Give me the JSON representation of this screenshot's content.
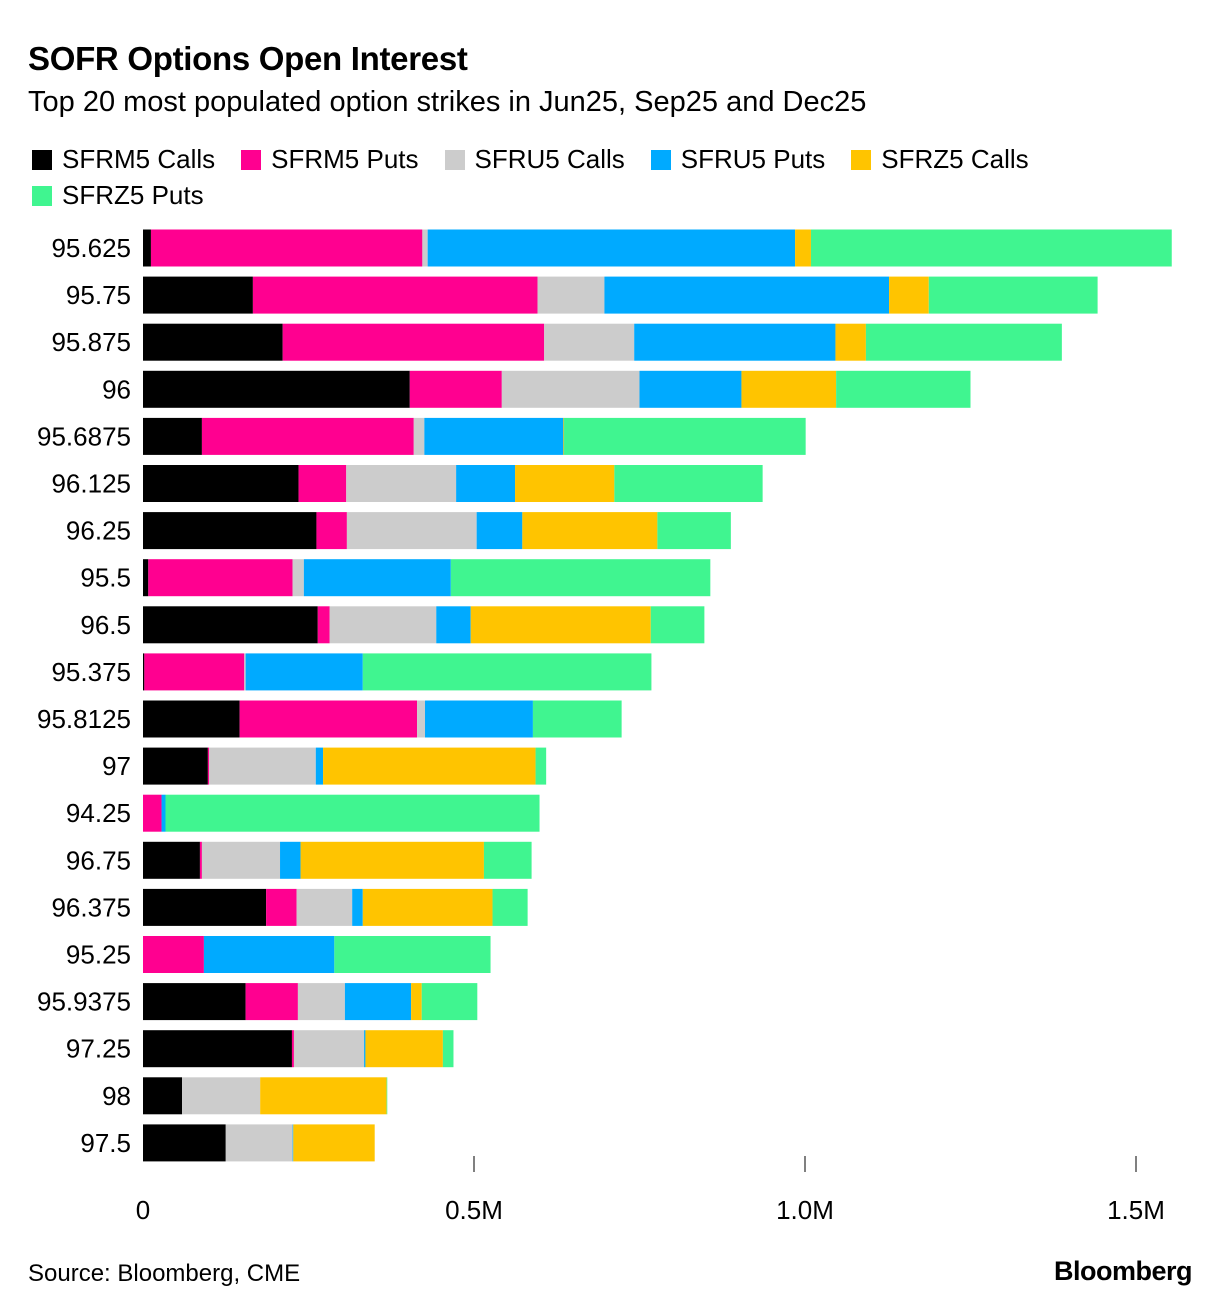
{
  "header": {
    "title": "SOFR Options Open Interest",
    "subtitle": "Top 20 most populated option strikes in Jun25, Sep25 and Dec25"
  },
  "footer": {
    "source": "Source: Bloomberg, CME",
    "brand": "Bloomberg"
  },
  "chart_data": {
    "type": "bar",
    "orientation": "horizontal",
    "stacked": true,
    "title": "SOFR Options Open Interest",
    "subtitle": "Top 20 most populated option strikes in Jun25, Sep25 and Dec25",
    "xlabel": "",
    "ylabel": "",
    "xlim": [
      0,
      1560000
    ],
    "x_ticks": [
      0,
      500000,
      1000000,
      1500000
    ],
    "x_tick_labels": [
      "0",
      "0.5M",
      "1.0M",
      "1.5M"
    ],
    "legend_position": "top-left",
    "grid": false,
    "categories": [
      "95.625",
      "95.75",
      "95.875",
      "96",
      "95.6875",
      "96.125",
      "96.25",
      "95.5",
      "96.5",
      "95.375",
      "95.8125",
      "97",
      "94.25",
      "96.75",
      "96.375",
      "95.25",
      "95.9375",
      "97.25",
      "98",
      "97.5"
    ],
    "series": [
      {
        "name": "SFRM5 Calls",
        "color": "#000000",
        "values": [
          12000,
          166000,
          211000,
          403000,
          89000,
          235000,
          262000,
          8000,
          264000,
          2000,
          146000,
          98000,
          0,
          86000,
          186000,
          0,
          155000,
          225000,
          59000,
          125000
        ]
      },
      {
        "name": "SFRM5 Puts",
        "color": "#ff0090",
        "values": [
          410000,
          430000,
          395000,
          139000,
          320000,
          72000,
          46000,
          218000,
          18000,
          151000,
          268000,
          2000,
          28000,
          3000,
          46000,
          92000,
          79000,
          3000,
          0,
          0
        ]
      },
      {
        "name": "SFRU5 Calls",
        "color": "#cccccc",
        "values": [
          8000,
          101000,
          136000,
          208000,
          16000,
          166000,
          196000,
          17000,
          161000,
          2000,
          12000,
          161000,
          0,
          118000,
          84000,
          0,
          71000,
          106000,
          118000,
          101000
        ]
      },
      {
        "name": "SFRU5 Puts",
        "color": "#00aaff",
        "values": [
          555000,
          430000,
          304000,
          154000,
          210000,
          89000,
          69000,
          222000,
          52000,
          177000,
          163000,
          11000,
          6000,
          31000,
          16000,
          197000,
          100000,
          2000,
          0,
          1000
        ]
      },
      {
        "name": "SFRZ5 Calls",
        "color": "#ffc400",
        "values": [
          24000,
          60000,
          46000,
          143000,
          1000,
          150000,
          204000,
          0,
          272000,
          0,
          0,
          321000,
          0,
          277000,
          196000,
          0,
          16000,
          117000,
          191000,
          123000
        ]
      },
      {
        "name": "SFRZ5 Puts",
        "color": "#40f590",
        "values": [
          545000,
          255000,
          296000,
          203000,
          365000,
          224000,
          111000,
          392000,
          81000,
          436000,
          134000,
          16000,
          565000,
          72000,
          53000,
          236000,
          84000,
          16000,
          1000,
          0
        ]
      }
    ]
  }
}
